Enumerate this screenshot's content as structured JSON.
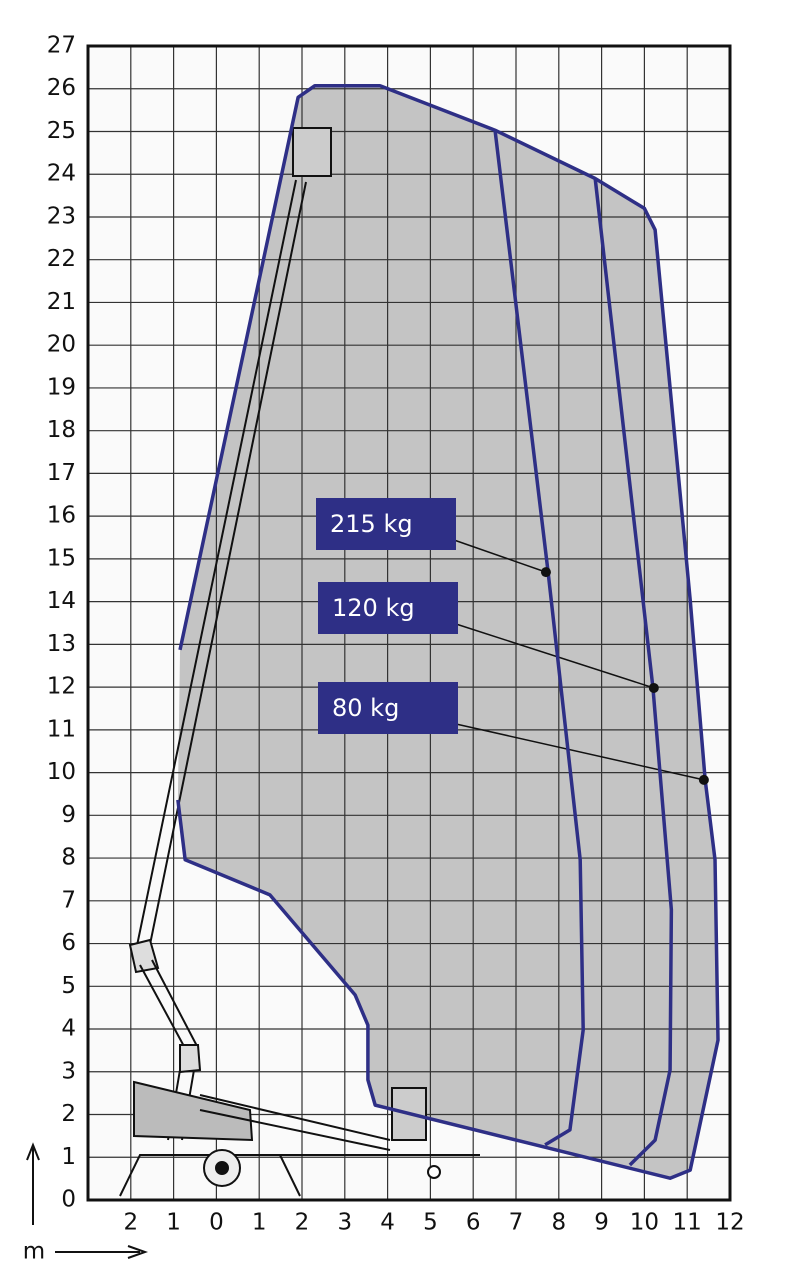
{
  "chart_data": {
    "type": "line",
    "xlim": [
      -3,
      12
    ],
    "ylim": [
      0,
      27
    ],
    "xticks": [
      {
        "value": -2,
        "label": "2"
      },
      {
        "value": -1,
        "label": "1"
      },
      0,
      1,
      2,
      3,
      4,
      5,
      6,
      7,
      8,
      9,
      10,
      11,
      12
    ],
    "yticks": [
      0,
      1,
      2,
      3,
      4,
      5,
      6,
      7,
      8,
      9,
      10,
      11,
      12,
      13,
      14,
      15,
      16,
      17,
      18,
      19,
      20,
      21,
      22,
      23,
      24,
      25,
      26,
      27
    ],
    "x_unit": "m",
    "grid": true,
    "series": [
      {
        "name": "80 kg",
        "color": "#2e2f86",
        "x": [
          -0.85,
          1.91,
          2.3,
          3.82,
          6.51,
          8.85,
          10.0,
          10.25,
          11.07,
          11.42,
          11.65,
          11.72,
          11.07,
          10.6,
          3.71,
          3.54,
          3.54,
          3.24,
          1.25,
          -0.73,
          -0.9
        ],
        "values": [
          12.87,
          25.8,
          26.07,
          26.07,
          25.03,
          23.9,
          23.2,
          22.7,
          14.04,
          9.83,
          7.96,
          3.74,
          0.7,
          0.51,
          2.22,
          2.81,
          4.09,
          4.8,
          7.14,
          7.96,
          9.36
        ],
        "marker": {
          "x": 11.39,
          "y": 9.83
        }
      },
      {
        "name": "120 kg",
        "color": "#2e2f86",
        "x": [
          8.85,
          10.2,
          10.63,
          10.6,
          10.25,
          9.66
        ],
        "values": [
          23.9,
          11.98,
          6.79,
          3.04,
          1.4,
          0.82
        ],
        "marker": {
          "x": 10.22,
          "y": 11.98
        }
      },
      {
        "name": "215 kg",
        "color": "#2e2f86",
        "x": [
          6.51,
          7.75,
          8.5,
          8.57,
          8.26,
          7.68
        ],
        "values": [
          25.03,
          14.69,
          7.96,
          3.98,
          1.64,
          1.29
        ],
        "marker": {
          "x": 7.7,
          "y": 14.69
        }
      }
    ]
  }
}
